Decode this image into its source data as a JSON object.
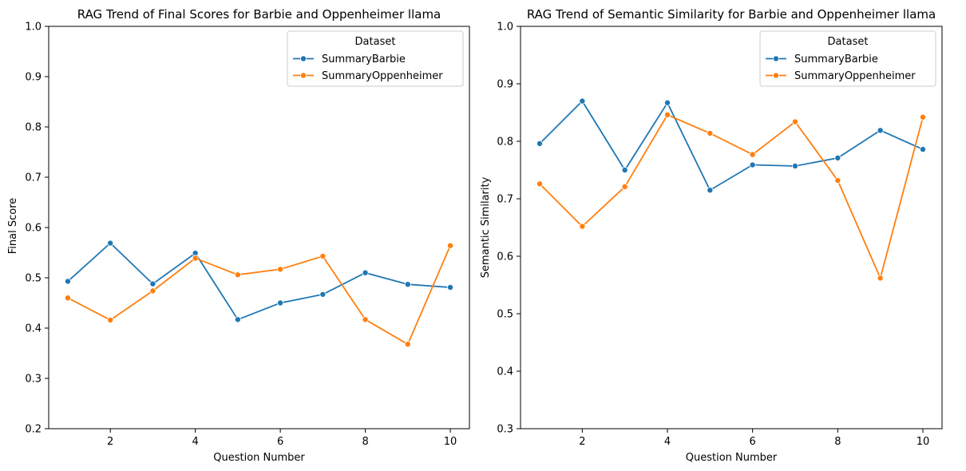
{
  "chart_data": [
    {
      "type": "line",
      "title": "RAG Trend of Final Scores for Barbie and Oppenheimer llama",
      "xlabel": "Question Number",
      "ylabel": "Final Score",
      "xlim": [
        0.55,
        10.45
      ],
      "ylim": [
        0.2,
        1.0
      ],
      "xticks": [
        2,
        4,
        6,
        8,
        10
      ],
      "yticks": [
        0.2,
        0.3,
        0.4,
        0.5,
        0.6,
        0.7,
        0.8,
        0.9,
        1.0
      ],
      "grid": false,
      "legend": {
        "title": "Dataset",
        "placement": "top-right"
      },
      "x": [
        1,
        2,
        3,
        4,
        5,
        6,
        7,
        8,
        9,
        10
      ],
      "series": [
        {
          "name": "SummaryBarbie",
          "color": "#1f77b4",
          "values": [
            0.493,
            0.569,
            0.488,
            0.549,
            0.417,
            0.45,
            0.467,
            0.51,
            0.487,
            0.481
          ]
        },
        {
          "name": "SummaryOppenheimer",
          "color": "#ff7f0e",
          "values": [
            0.46,
            0.416,
            0.474,
            0.539,
            0.506,
            0.517,
            0.543,
            0.417,
            0.368,
            0.564
          ]
        }
      ]
    },
    {
      "type": "line",
      "title": "RAG Trend of Semantic Similarity for Barbie and Oppenheimer llama",
      "xlabel": "Question Number",
      "ylabel": "Semantic Similarity",
      "xlim": [
        0.55,
        10.45
      ],
      "ylim": [
        0.3,
        1.0
      ],
      "xticks": [
        2,
        4,
        6,
        8,
        10
      ],
      "yticks": [
        0.3,
        0.4,
        0.5,
        0.6,
        0.7,
        0.8,
        0.9,
        1.0
      ],
      "grid": false,
      "legend": {
        "title": "Dataset",
        "placement": "top-right"
      },
      "x": [
        1,
        2,
        3,
        4,
        5,
        6,
        7,
        8,
        9,
        10
      ],
      "series": [
        {
          "name": "SummaryBarbie",
          "color": "#1f77b4",
          "values": [
            0.796,
            0.87,
            0.75,
            0.867,
            0.715,
            0.759,
            0.757,
            0.771,
            0.819,
            0.786
          ]
        },
        {
          "name": "SummaryOppenheimer",
          "color": "#ff7f0e",
          "values": [
            0.726,
            0.652,
            0.721,
            0.846,
            0.814,
            0.777,
            0.834,
            0.732,
            0.562,
            0.842
          ]
        }
      ]
    }
  ]
}
